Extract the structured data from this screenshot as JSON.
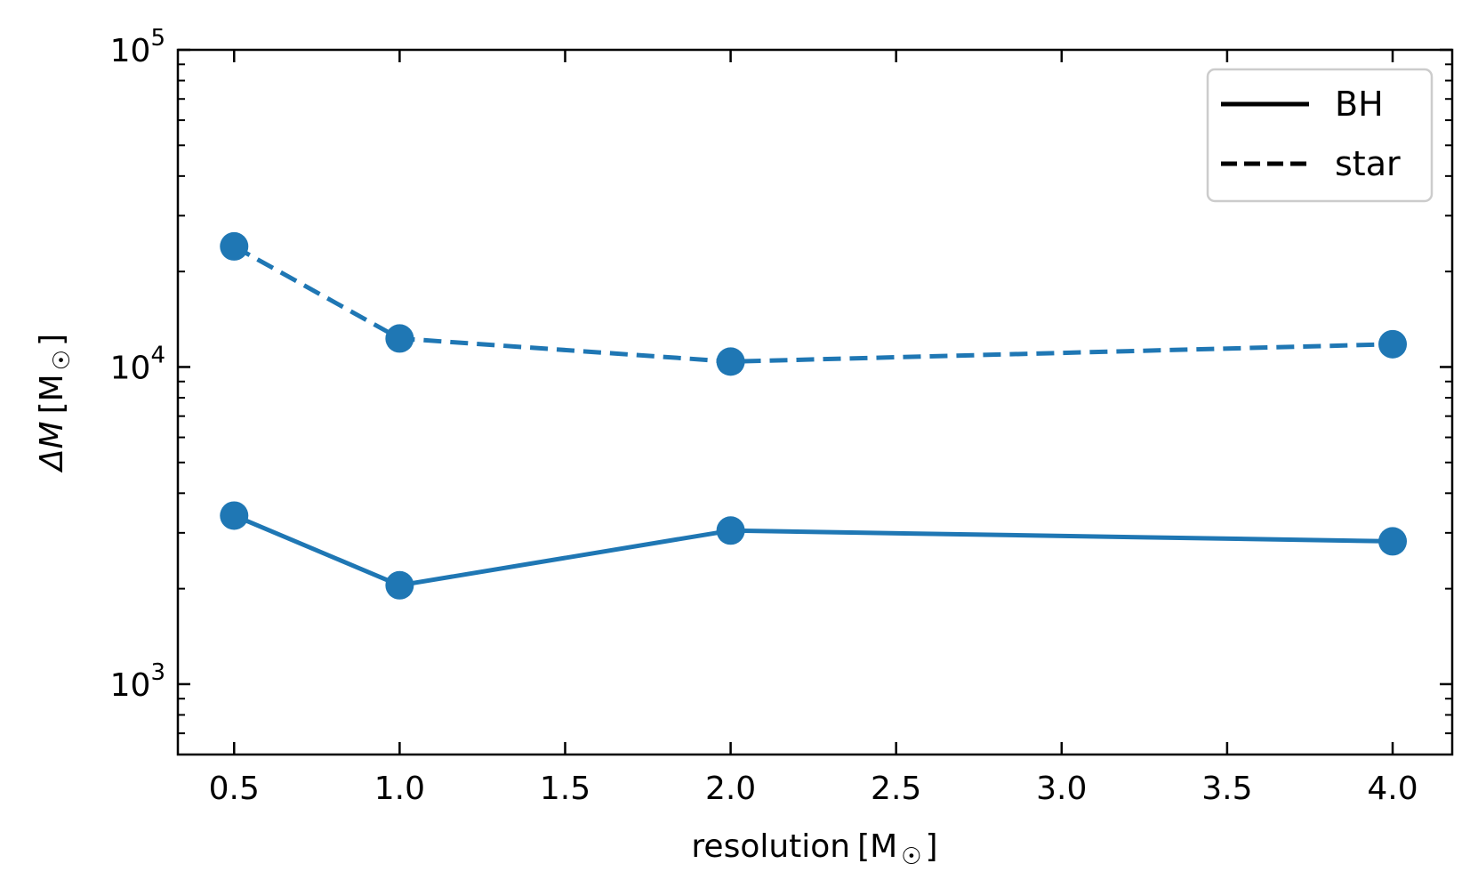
{
  "chart_data": {
    "type": "line",
    "x": [
      0.5,
      1.0,
      2.0,
      4.0
    ],
    "series": [
      {
        "name": "BH",
        "values": [
          3400,
          2050,
          3050,
          2820
        ],
        "style": "solid"
      },
      {
        "name": "star",
        "values": [
          24000,
          12300,
          10400,
          11800
        ],
        "style": "dashed"
      }
    ],
    "xlabel": "resolution",
    "xlabel_unit": "M",
    "ylabel": "ΔM",
    "ylabel_unit": "M",
    "unit_symbol": "☉",
    "xlim": [
      0.33,
      4.18
    ],
    "ylim": [
      600,
      100000
    ],
    "yscale": "log",
    "xticks": [
      "0.5",
      "1.0",
      "1.5",
      "2.0",
      "2.5",
      "3.0",
      "3.5",
      "4.0"
    ],
    "yticks": [
      {
        "base": "10",
        "exp": "3",
        "value": 1000
      },
      {
        "base": "10",
        "exp": "4",
        "value": 10000
      },
      {
        "base": "10",
        "exp": "5",
        "value": 100000
      }
    ],
    "legend_position": "top-right",
    "grid": false,
    "line_color": "#1f77b4"
  }
}
